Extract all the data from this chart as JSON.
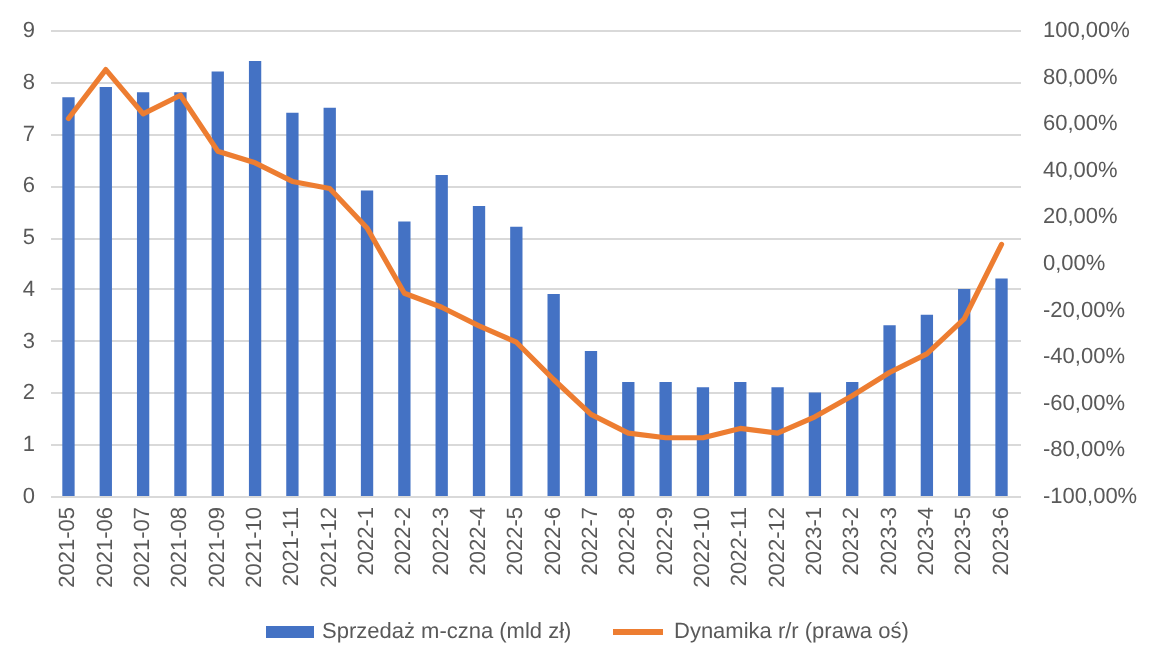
{
  "chart_data": {
    "type": "bar",
    "categories": [
      "2021-05",
      "2021-06",
      "2021-07",
      "2021-08",
      "2021-09",
      "2021-10",
      "2021-11",
      "2021-12",
      "2022-1",
      "2022-2",
      "2022-3",
      "2022-4",
      "2022-5",
      "2022-6",
      "2022-7",
      "2022-8",
      "2022-9",
      "2022-10",
      "2022-11",
      "2022-12",
      "2023-1",
      "2023-2",
      "2023-3",
      "2023-4",
      "2023-5",
      "2023-6"
    ],
    "series": [
      {
        "name": "Sprzedaż m-czna (mld zł)",
        "color": "#4472c4",
        "values": [
          7.7,
          7.9,
          7.8,
          7.8,
          8.2,
          8.4,
          7.4,
          7.5,
          5.9,
          5.3,
          6.2,
          5.6,
          5.2,
          3.9,
          2.8,
          2.2,
          2.2,
          2.1,
          2.2,
          2.1,
          2.0,
          2.2,
          3.3,
          3.5,
          4.0,
          4.2
        ]
      },
      {
        "name": "Dynamika r/r (prawa oś)",
        "type": "line",
        "axis": "y2",
        "color": "#ed7d31",
        "values": [
          62,
          83,
          64,
          72,
          48,
          43,
          35,
          32,
          15,
          -13,
          -19,
          -27,
          -34,
          -50,
          -65,
          -73,
          -75,
          -75,
          -71,
          -73,
          -66,
          -57,
          -47,
          -39,
          -24,
          8
        ]
      }
    ],
    "ylim": [
      0,
      9
    ],
    "yticks": [
      0,
      1,
      2,
      3,
      4,
      5,
      6,
      7,
      8,
      9
    ],
    "y2lim": [
      -100,
      100
    ],
    "y2ticks": [
      {
        "value": -100,
        "label": "-100,00%"
      },
      {
        "value": -80,
        "label": "-80,00%"
      },
      {
        "value": -60,
        "label": "-60,00%"
      },
      {
        "value": -40,
        "label": "-40,00%"
      },
      {
        "value": -20,
        "label": "-20,00%"
      },
      {
        "value": 0,
        "label": "0,00%"
      },
      {
        "value": 20,
        "label": "20,00%"
      },
      {
        "value": 40,
        "label": "40,00%"
      },
      {
        "value": 60,
        "label": "60,00%"
      },
      {
        "value": 80,
        "label": "80,00%"
      },
      {
        "value": 100,
        "label": "100,00%"
      }
    ],
    "grid": "y",
    "legend": "bottom"
  }
}
